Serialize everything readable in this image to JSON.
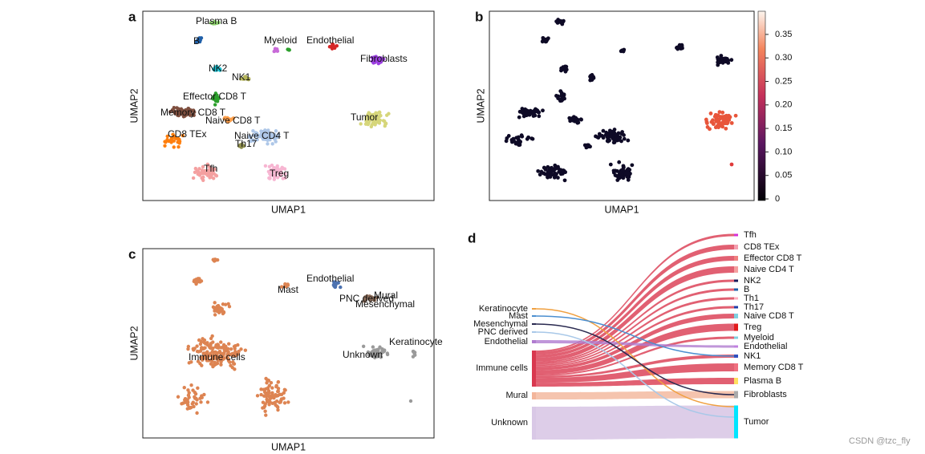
{
  "panels": [
    {
      "letter": "a",
      "x_label": "UMAP1",
      "y_label": "UMAP2",
      "clusters": [
        "Plasma B",
        "B",
        "Myeloid",
        "Endothelial",
        "Fibroblasts",
        "NK2",
        "NK1",
        "Effector CD8 T",
        "Memory CD8 T",
        "Naive CD8 T",
        "Tumor",
        "CD8 TEx",
        "Naive CD4 T",
        "Th17",
        "Tfh",
        "Treg"
      ]
    },
    {
      "letter": "b",
      "x_label": "UMAP1",
      "y_label": "UMAP2",
      "colorbar_ticks": [
        "0",
        "0.05",
        "0.10",
        "0.15",
        "0.20",
        "0.25",
        "0.30",
        "0.35"
      ]
    },
    {
      "letter": "c",
      "x_label": "UMAP1",
      "y_label": "UMAP2",
      "clusters": [
        "Endothelial",
        "Mast",
        "Mural",
        "PNC derived",
        "Mesenchymal",
        "Keratinocyte",
        "Unknown",
        "Immune cells"
      ]
    },
    {
      "letter": "d",
      "sources": [
        "Keratinocyte",
        "Mast",
        "Mesenchymal",
        "PNC derived",
        "Endothelial",
        "Immune cells",
        "Mural",
        "Unknown"
      ],
      "targets": [
        "Tfh",
        "CD8 TEx",
        "Effector CD8 T",
        "Naive CD4 T",
        "NK2",
        "B",
        "Th1",
        "Th17",
        "Naive CD8 T",
        "Treg",
        "Myeloid",
        "Endothelial",
        "NK1",
        "Memory CD8 T",
        "Plasma B",
        "Fibroblasts",
        "Tumor"
      ]
    }
  ],
  "watermark": "CSDN @tzc_fly"
}
